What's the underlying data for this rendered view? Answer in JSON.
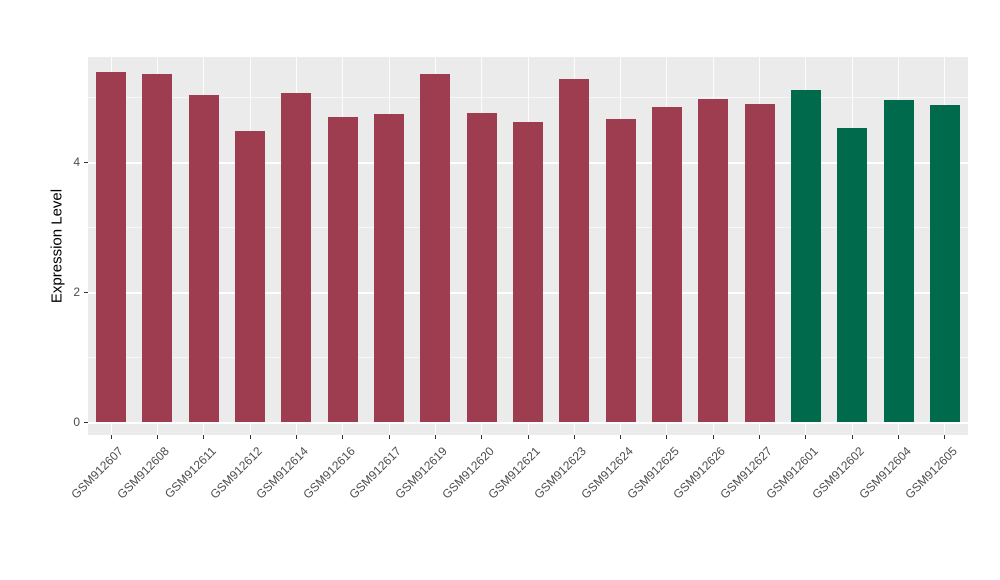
{
  "chart_data": {
    "type": "bar",
    "title": "",
    "xlabel": "",
    "ylabel": "Expression Level",
    "ylim": [
      0,
      5.6
    ],
    "yticks": [
      0,
      2,
      4
    ],
    "grid": "on",
    "legend": "none",
    "panel_background": "#ebebeb",
    "categories": [
      "GSM912607",
      "GSM912608",
      "GSM912611",
      "GSM912612",
      "GSM912614",
      "GSM912616",
      "GSM912617",
      "GSM912619",
      "GSM912620",
      "GSM912621",
      "GSM912623",
      "GSM912624",
      "GSM912625",
      "GSM912626",
      "GSM912627",
      "GSM912601",
      "GSM912602",
      "GSM912604",
      "GSM912605"
    ],
    "values": [
      5.38,
      5.35,
      5.03,
      4.48,
      5.06,
      4.7,
      4.74,
      5.36,
      4.76,
      4.62,
      5.27,
      4.66,
      4.85,
      4.97,
      4.89,
      5.11,
      4.52,
      4.95,
      4.87
    ],
    "bar_groups": [
      "A",
      "A",
      "A",
      "A",
      "A",
      "A",
      "A",
      "A",
      "A",
      "A",
      "A",
      "A",
      "A",
      "A",
      "A",
      "B",
      "B",
      "B",
      "B"
    ],
    "group_colors": {
      "A": "#9e3d50",
      "B": "#006b4c"
    }
  }
}
